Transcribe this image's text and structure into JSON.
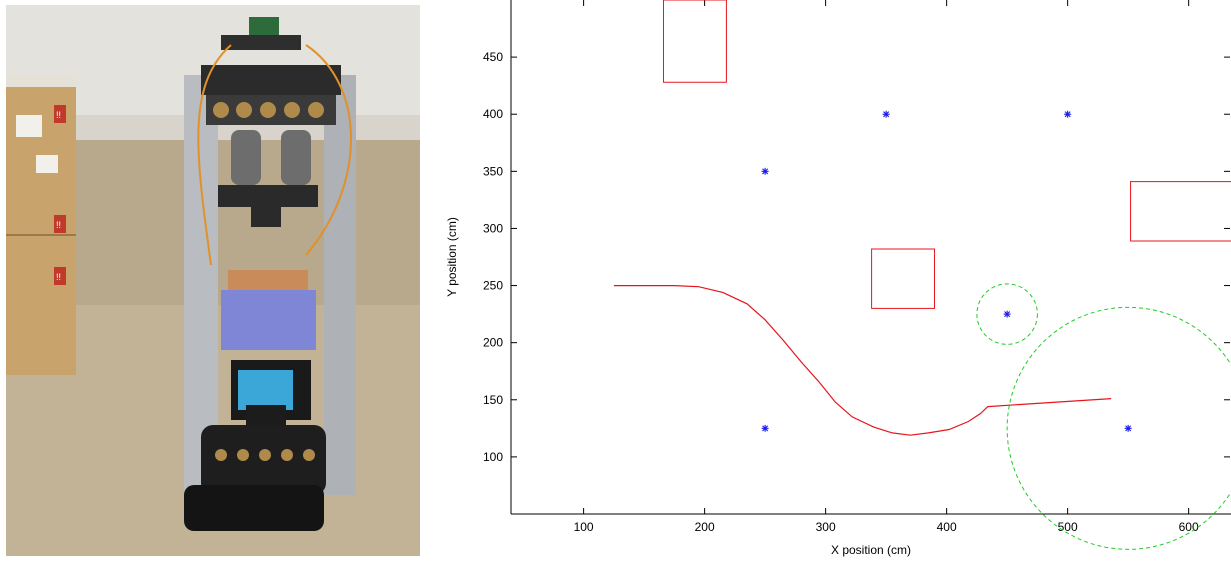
{
  "photo": {
    "box_labels": [
      "!!",
      "!!",
      "!!"
    ]
  },
  "chart_data": {
    "type": "line",
    "xlabel": "X position (cm)",
    "ylabel": "Y position (cm)",
    "xlim": [
      40,
      635
    ],
    "ylim": [
      50,
      500
    ],
    "xticks": [
      100,
      200,
      300,
      400,
      500,
      600
    ],
    "yticks": [
      100,
      150,
      200,
      250,
      300,
      350,
      400,
      450
    ],
    "grid": false,
    "colors": {
      "path": "#e8141c",
      "obstacle": "#e8141c",
      "landmark": "#1a1aee",
      "range": "#22cc22"
    },
    "landmarks": [
      {
        "x": 250,
        "y": 125
      },
      {
        "x": 250,
        "y": 350
      },
      {
        "x": 350,
        "y": 400
      },
      {
        "x": 500,
        "y": 400
      },
      {
        "x": 450,
        "y": 225
      },
      {
        "x": 550,
        "y": 125
      }
    ],
    "obstacles": [
      {
        "x0": 166,
        "y0": 428,
        "x1": 218,
        "y1": 500
      },
      {
        "x0": 338,
        "y0": 230,
        "x1": 390,
        "y1": 282
      },
      {
        "x0": 552,
        "y0": 289,
        "x1": 640,
        "y1": 341
      }
    ],
    "ranges": [
      {
        "cx": 450,
        "cy": 225,
        "r": 25
      },
      {
        "cx": 550,
        "cy": 125,
        "r": 100
      }
    ],
    "path": {
      "x": [
        125,
        150,
        175,
        195,
        215,
        235,
        250,
        265,
        280,
        295,
        308,
        322,
        340,
        355,
        370,
        385,
        402,
        418,
        428,
        434,
        536
      ],
      "y": [
        250,
        250,
        250,
        249,
        244,
        234,
        220,
        202,
        183,
        165,
        148,
        135,
        126,
        121,
        119,
        121,
        124,
        131,
        138,
        144,
        151
      ]
    }
  }
}
